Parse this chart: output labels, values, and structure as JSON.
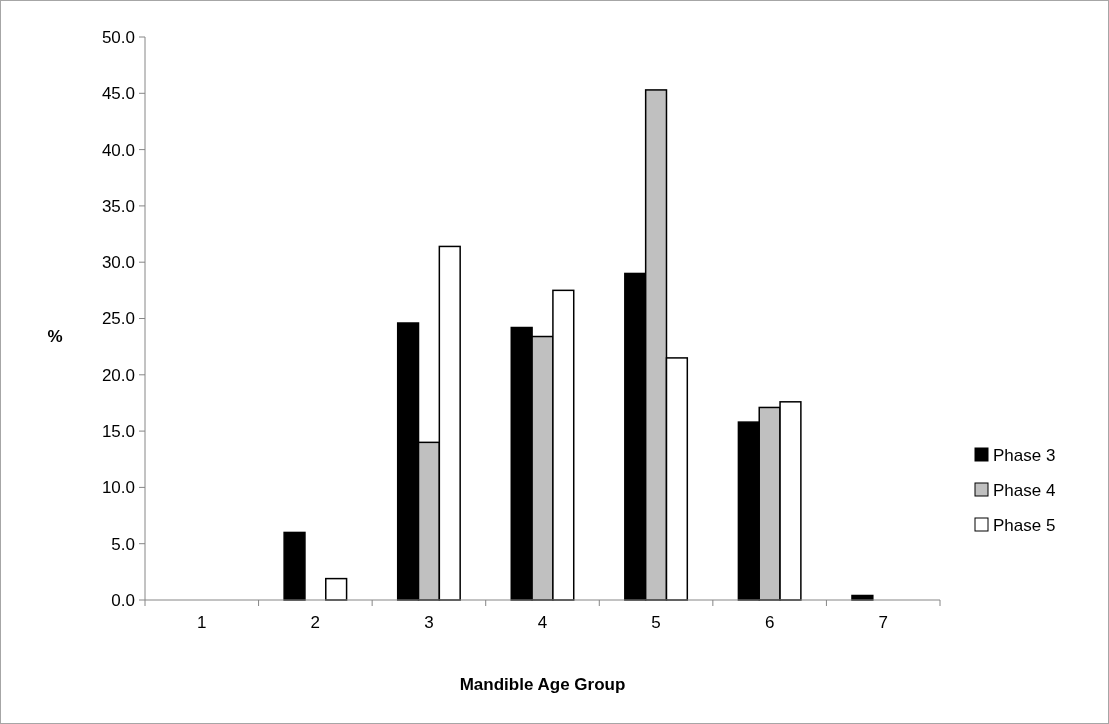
{
  "chart_data": {
    "type": "bar",
    "xlabel": "Mandible Age Group",
    "ylabel": "%",
    "categories": [
      "1",
      "2",
      "3",
      "4",
      "5",
      "6",
      "7"
    ],
    "series": [
      {
        "name": "Phase 3",
        "color": "#000000",
        "values": [
          0,
          6.0,
          24.6,
          24.2,
          29.0,
          15.8,
          0.4
        ]
      },
      {
        "name": "Phase 4",
        "color": "#c0c0c0",
        "values": [
          0,
          0,
          14.0,
          23.4,
          45.3,
          17.1,
          0
        ]
      },
      {
        "name": "Phase 5",
        "color": "#ffffff",
        "values": [
          0,
          1.9,
          31.4,
          27.5,
          21.5,
          17.6,
          0
        ]
      }
    ],
    "ylim": [
      0,
      50
    ],
    "yticks": [
      {
        "value": 0,
        "label": "0.0"
      },
      {
        "value": 5,
        "label": "5.0"
      },
      {
        "value": 10,
        "label": "10.0"
      },
      {
        "value": 15,
        "label": "15.0"
      },
      {
        "value": 20,
        "label": "20.0"
      },
      {
        "value": 25,
        "label": "25.0"
      },
      {
        "value": 30,
        "label": "30.0"
      },
      {
        "value": 35,
        "label": "35.0"
      },
      {
        "value": 40,
        "label": "40.0"
      },
      {
        "value": 45,
        "label": "45.0"
      },
      {
        "value": 50,
        "label": "50.0"
      }
    ],
    "grid": false,
    "legend": "right"
  }
}
